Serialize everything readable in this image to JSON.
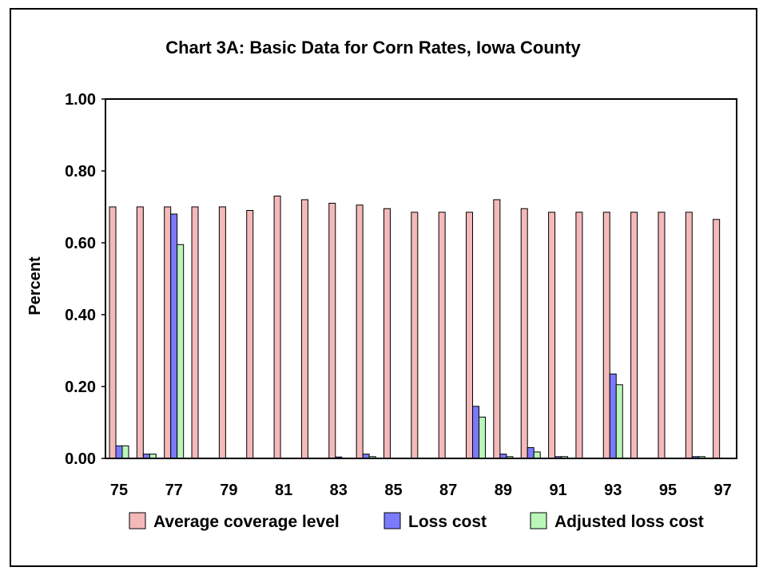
{
  "chart_data": {
    "type": "bar",
    "title": "Chart 3A: Basic Data for Corn Rates, Iowa County",
    "ylabel": "Percent",
    "xlabel": "",
    "ylim": [
      0,
      1
    ],
    "yticks": [
      "0.00",
      "0.20",
      "0.40",
      "0.60",
      "0.80",
      "1.00"
    ],
    "categories": [
      "75",
      "76",
      "77",
      "78",
      "79",
      "80",
      "81",
      "82",
      "83",
      "84",
      "85",
      "86",
      "87",
      "88",
      "89",
      "90",
      "91",
      "92",
      "93",
      "94",
      "95",
      "96",
      "97"
    ],
    "xtick_labels": [
      "75",
      "77",
      "79",
      "81",
      "83",
      "85",
      "87",
      "89",
      "91",
      "93",
      "95",
      "97"
    ],
    "series": [
      {
        "name": "Average coverage level",
        "color": "#f4b9b9",
        "values": [
          0.7,
          0.7,
          0.7,
          0.7,
          0.7,
          0.69,
          0.73,
          0.72,
          0.71,
          0.705,
          0.695,
          0.685,
          0.685,
          0.685,
          0.72,
          0.695,
          0.685,
          0.685,
          0.685,
          0.685,
          0.685,
          0.685,
          0.665
        ]
      },
      {
        "name": "Loss cost",
        "color": "#7a7aff",
        "values": [
          0.035,
          0.012,
          0.68,
          0.0,
          0.0,
          0.0,
          0.0,
          0.0,
          0.004,
          0.012,
          0.0,
          0.0,
          0.0,
          0.145,
          0.012,
          0.03,
          0.005,
          0.0,
          0.235,
          0.0,
          0.0,
          0.005,
          0.0
        ]
      },
      {
        "name": "Adjusted loss cost",
        "color": "#b9f7b9",
        "values": [
          0.035,
          0.012,
          0.595,
          0.0,
          0.0,
          0.0,
          0.0,
          0.0,
          0.0,
          0.005,
          0.0,
          0.0,
          0.0,
          0.115,
          0.005,
          0.018,
          0.005,
          0.0,
          0.205,
          0.0,
          0.0,
          0.005,
          0.0
        ]
      }
    ],
    "legend_position": "bottom",
    "grid": false
  }
}
